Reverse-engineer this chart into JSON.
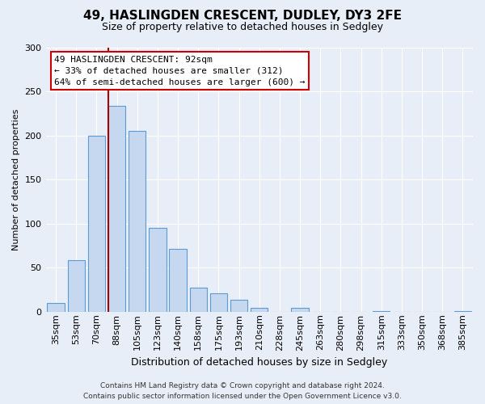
{
  "title": "49, HASLINGDEN CRESCENT, DUDLEY, DY3 2FE",
  "subtitle": "Size of property relative to detached houses in Sedgley",
  "xlabel": "Distribution of detached houses by size in Sedgley",
  "ylabel": "Number of detached properties",
  "bar_labels": [
    "35sqm",
    "53sqm",
    "70sqm",
    "88sqm",
    "105sqm",
    "123sqm",
    "140sqm",
    "158sqm",
    "175sqm",
    "193sqm",
    "210sqm",
    "228sqm",
    "245sqm",
    "263sqm",
    "280sqm",
    "298sqm",
    "315sqm",
    "333sqm",
    "350sqm",
    "368sqm",
    "385sqm"
  ],
  "bar_values": [
    10,
    59,
    200,
    234,
    205,
    95,
    71,
    27,
    21,
    14,
    4,
    0,
    4,
    0,
    0,
    0,
    1,
    0,
    0,
    0,
    1
  ],
  "bar_color": "#c5d8ef",
  "bar_edge_color": "#5b9bd5",
  "ylim": [
    0,
    300
  ],
  "yticks": [
    0,
    50,
    100,
    150,
    200,
    250,
    300
  ],
  "property_line_index": 3,
  "property_line_color": "#aa0000",
  "annotation_title": "49 HASLINGDEN CRESCENT: 92sqm",
  "annotation_line1": "← 33% of detached houses are smaller (312)",
  "annotation_line2": "64% of semi-detached houses are larger (600) →",
  "annotation_box_facecolor": "#ffffff",
  "annotation_box_edgecolor": "#cc0000",
  "footer_line1": "Contains HM Land Registry data © Crown copyright and database right 2024.",
  "footer_line2": "Contains public sector information licensed under the Open Government Licence v3.0.",
  "bg_color": "#e8eef7",
  "plot_bg_color": "#e8eef7",
  "grid_color": "#ffffff",
  "title_fontsize": 11,
  "subtitle_fontsize": 9,
  "ylabel_fontsize": 8,
  "xlabel_fontsize": 9,
  "tick_fontsize": 8,
  "annotation_fontsize": 8,
  "footer_fontsize": 6.5
}
